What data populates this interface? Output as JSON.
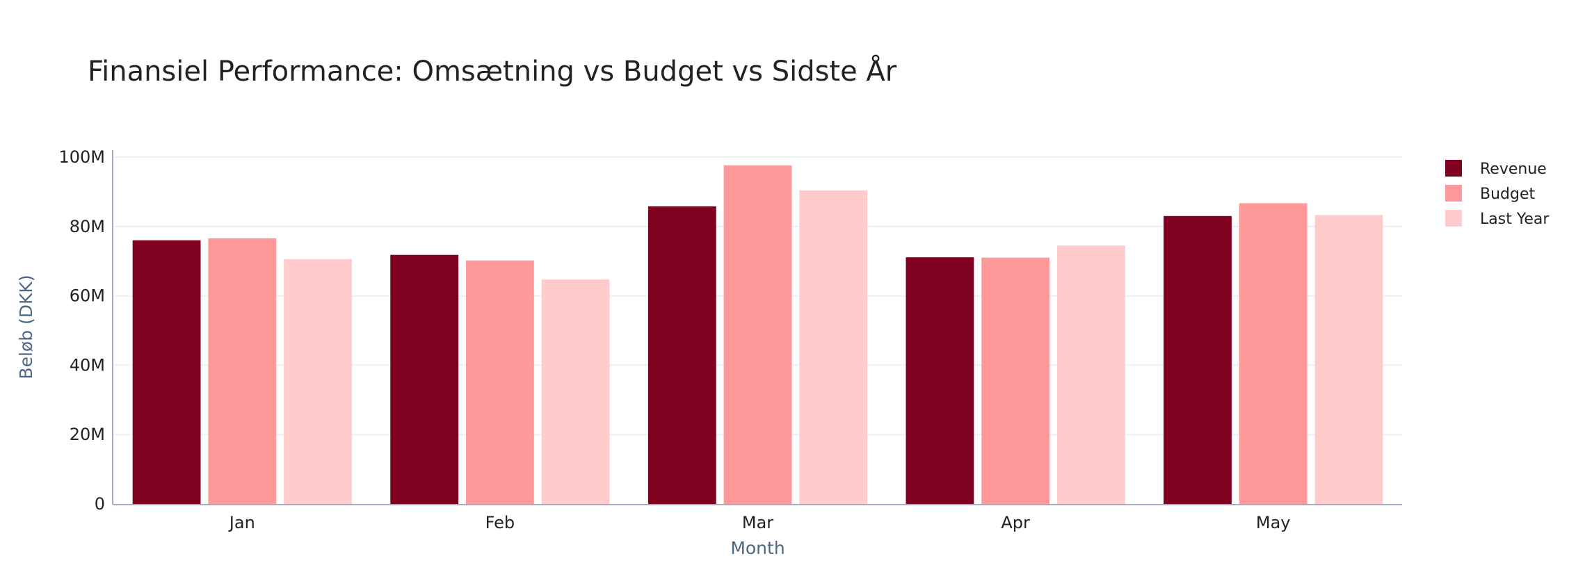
{
  "chart_data": {
    "type": "bar",
    "title": "Finansiel Performance: Omsætning vs Budget vs Sidste År",
    "xlabel": "Month",
    "ylabel": "Beløb (DKK)",
    "categories": [
      "Jan",
      "Feb",
      "Mar",
      "Apr",
      "May"
    ],
    "series": [
      {
        "name": "Revenue",
        "color": "#800020",
        "values": [
          76000000,
          71800000,
          85800000,
          71100000,
          83000000
        ]
      },
      {
        "name": "Budget",
        "color": "#FF9999",
        "values": [
          76600000,
          70200000,
          97600000,
          71000000,
          86700000
        ]
      },
      {
        "name": "Last Year",
        "color": "#FFCCCB",
        "values": [
          70600000,
          64700000,
          90400000,
          74500000,
          83300000
        ]
      }
    ],
    "ylim": [
      0,
      102000000
    ],
    "yticks": [
      0,
      20000000,
      40000000,
      60000000,
      80000000,
      100000000
    ],
    "ytick_labels": [
      "0",
      "20M",
      "40M",
      "60M",
      "80M",
      "100M"
    ],
    "grid": true,
    "legend_position": "top-right"
  }
}
